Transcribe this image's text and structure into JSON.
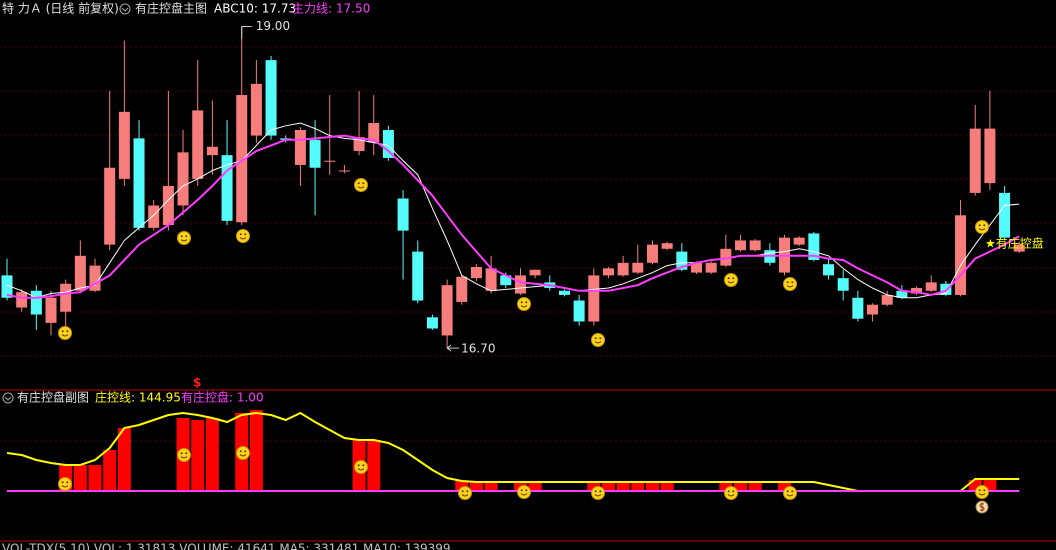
{
  "header": "特 力Ａ (日线 前复权)",
  "chart_data": [
    {
      "type": "candlestick",
      "title": "有庄控盘主图",
      "open": [
        17.22,
        16.99,
        17.11,
        16.88,
        16.96,
        17.11,
        17.11,
        17.44,
        17.91,
        18.2,
        17.56,
        17.58,
        17.72,
        17.91,
        18.08,
        18.08,
        17.6,
        18.22,
        18.76,
        18.2,
        18.01,
        18.19,
        18.04,
        17.97,
        18.11,
        18.17,
        18.26,
        17.77,
        17.39,
        16.92,
        16.79,
        17.03,
        17.2,
        17.11,
        17.22,
        17.09,
        17.22,
        17.17,
        17.11,
        17.04,
        16.89,
        17.22,
        17.22,
        17.24,
        17.31,
        17.41,
        17.39,
        17.24,
        17.24,
        17.29,
        17.4,
        17.4,
        17.4,
        17.24,
        17.44,
        17.52,
        17.3,
        17.2,
        17.06,
        16.94,
        17.01,
        17.11,
        17.09,
        17.11,
        17.16,
        17.08,
        17.81,
        17.88,
        17.81,
        17.39
      ],
      "high": [
        17.34,
        17.12,
        17.15,
        17.11,
        17.19,
        17.47,
        17.34,
        18.54,
        18.9,
        18.33,
        17.76,
        18.54,
        18.26,
        18.76,
        18.47,
        18.33,
        19.0,
        18.76,
        18.79,
        18.22,
        18.28,
        18.33,
        18.51,
        18.01,
        18.54,
        18.51,
        18.29,
        17.83,
        17.47,
        16.94,
        17.19,
        17.22,
        17.3,
        17.36,
        17.24,
        17.27,
        17.26,
        17.22,
        17.12,
        17.08,
        17.27,
        17.28,
        17.36,
        17.44,
        17.47,
        17.46,
        17.45,
        17.32,
        17.32,
        17.51,
        17.51,
        17.48,
        17.45,
        17.51,
        17.5,
        17.53,
        17.34,
        17.26,
        17.11,
        17.02,
        17.11,
        17.15,
        17.14,
        17.22,
        17.18,
        17.76,
        18.44,
        18.54,
        17.86,
        17.46
      ],
      "low": [
        17.04,
        16.96,
        16.83,
        16.79,
        16.84,
        17.1,
        17.1,
        17.4,
        17.86,
        17.54,
        17.54,
        17.54,
        17.65,
        17.86,
        17.94,
        17.58,
        17.58,
        18.17,
        18.19,
        18.17,
        17.86,
        17.65,
        17.94,
        17.95,
        18.08,
        18.08,
        18.04,
        17.19,
        17.02,
        16.83,
        16.7,
        17.01,
        17.18,
        17.09,
        17.13,
        17.08,
        17.2,
        17.11,
        17.07,
        16.86,
        16.86,
        17.2,
        17.21,
        17.23,
        17.3,
        17.4,
        17.25,
        17.23,
        17.23,
        17.28,
        17.39,
        17.39,
        17.29,
        17.22,
        17.43,
        17.32,
        17.19,
        17.04,
        16.89,
        16.89,
        17.0,
        17.05,
        17.08,
        17.1,
        17.07,
        17.07,
        17.79,
        17.83,
        17.47,
        17.38
      ],
      "close": [
        17.06,
        17.1,
        16.94,
        17.06,
        17.16,
        17.36,
        17.29,
        17.99,
        18.39,
        17.56,
        17.72,
        17.86,
        18.1,
        18.4,
        18.14,
        17.61,
        18.51,
        18.59,
        18.22,
        18.19,
        18.26,
        17.99,
        18.04,
        17.97,
        18.21,
        18.31,
        18.06,
        17.54,
        17.04,
        16.84,
        17.15,
        17.21,
        17.28,
        17.27,
        17.15,
        17.22,
        17.26,
        17.13,
        17.08,
        16.89,
        17.22,
        17.27,
        17.31,
        17.31,
        17.44,
        17.45,
        17.26,
        17.31,
        17.31,
        17.41,
        17.47,
        17.47,
        17.31,
        17.49,
        17.49,
        17.33,
        17.22,
        17.11,
        16.91,
        17.01,
        17.08,
        17.06,
        17.13,
        17.17,
        17.08,
        17.65,
        18.27,
        18.27,
        17.49,
        17.44
      ],
      "up_color": "#f77d7d",
      "down_color": "#54fcfc",
      "ylim": [
        16.4,
        19.19
      ],
      "max_label": "19.00",
      "min_label": "16.70",
      "signal_label": "★有庄控盘",
      "series": [
        {
          "name": "ABC10: 17.73",
          "color": "#ffffff",
          "values": [
            17.15,
            17.11,
            17.06,
            17.09,
            17.1,
            17.13,
            17.15,
            17.31,
            17.47,
            17.56,
            17.65,
            17.76,
            17.86,
            17.91,
            17.97,
            18.01,
            18.04,
            18.15,
            18.26,
            18.29,
            18.31,
            18.27,
            18.22,
            18.2,
            18.19,
            18.17,
            18.15,
            18.04,
            17.94,
            17.7,
            17.47,
            17.22,
            17.16,
            17.11,
            17.12,
            17.13,
            17.14,
            17.15,
            17.13,
            17.11,
            17.12,
            17.13,
            17.16,
            17.2,
            17.24,
            17.29,
            17.31,
            17.31,
            17.33,
            17.34,
            17.36,
            17.36,
            17.38,
            17.39,
            17.41,
            17.39,
            17.36,
            17.27,
            17.19,
            17.13,
            17.08,
            17.06,
            17.06,
            17.08,
            17.09,
            17.29,
            17.44,
            17.58,
            17.72,
            17.73
          ]
        },
        {
          "name": "主力线: 17.50",
          "color": "#ff3cff",
          "values": [
            17.08,
            17.06,
            17.06,
            17.07,
            17.09,
            17.1,
            17.16,
            17.22,
            17.33,
            17.44,
            17.51,
            17.58,
            17.67,
            17.76,
            17.86,
            17.97,
            18.04,
            18.11,
            18.15,
            18.19,
            18.19,
            18.2,
            18.21,
            18.22,
            18.2,
            18.19,
            18.11,
            18.01,
            17.9,
            17.79,
            17.65,
            17.51,
            17.39,
            17.27,
            17.22,
            17.17,
            17.16,
            17.15,
            17.13,
            17.11,
            17.11,
            17.11,
            17.13,
            17.15,
            17.2,
            17.24,
            17.28,
            17.31,
            17.33,
            17.34,
            17.36,
            17.36,
            17.36,
            17.36,
            17.36,
            17.36,
            17.34,
            17.33,
            17.27,
            17.22,
            17.17,
            17.11,
            17.1,
            17.08,
            17.11,
            17.22,
            17.34,
            17.39,
            17.44,
            17.5
          ]
        }
      ]
    },
    {
      "type": "bar",
      "title": "有庄控盘副图",
      "indicator_labels": [
        "庄控线: 144.95",
        "有庄控盘: 1.00"
      ],
      "marker_label": "$",
      "ylim": [
        -592,
        1184
      ],
      "baseline": {
        "value": 0,
        "color": "#ff3cff"
      },
      "series": [
        {
          "type": "bar",
          "color": "#ff0000",
          "values": [
            0,
            0,
            0,
            0,
            314,
            314,
            314,
            495,
            761,
            0,
            0,
            0,
            882,
            857,
            882,
            0,
            942,
            978,
            0,
            0,
            0,
            0,
            0,
            0,
            616,
            616,
            0,
            0,
            0,
            0,
            0,
            121,
            109,
            109,
            0,
            109,
            109,
            0,
            0,
            0,
            109,
            109,
            109,
            109,
            109,
            109,
            0,
            0,
            0,
            109,
            109,
            109,
            0,
            109,
            0,
            0,
            0,
            0,
            0,
            0,
            0,
            0,
            0,
            0,
            0,
            0,
            133,
            133,
            0,
            0
          ]
        },
        {
          "type": "line",
          "color": "#ffff00",
          "values": [
            459,
            435,
            374,
            338,
            314,
            314,
            374,
            519,
            761,
            797,
            858,
            918,
            942,
            918,
            882,
            834,
            918,
            942,
            918,
            858,
            942,
            834,
            737,
            640,
            616,
            616,
            580,
            495,
            374,
            254,
            157,
            121,
            109,
            109,
            109,
            109,
            109,
            109,
            109,
            109,
            109,
            109,
            109,
            109,
            109,
            109,
            109,
            109,
            109,
            109,
            109,
            109,
            109,
            109,
            109,
            109,
            72,
            36,
            0,
            0,
            0,
            0,
            0,
            0,
            0,
            0,
            145,
            145,
            145,
            144.95
          ]
        }
      ]
    }
  ],
  "footer": "VOL-TDX(5,10)  VOL: 1.31813  VOLUME: 41641  MA5: 331481  MA10: 139399"
}
